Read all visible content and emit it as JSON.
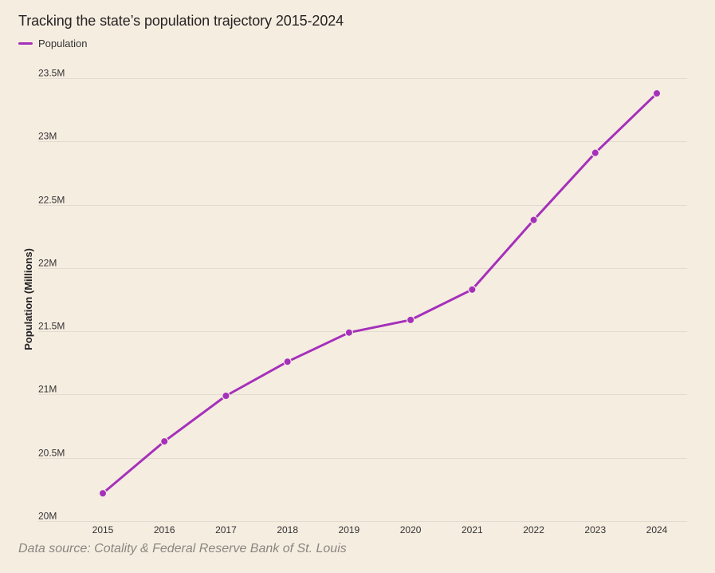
{
  "chart_data": {
    "type": "line",
    "title": "Tracking the state’s population trajectory 2015-2024",
    "ylabel": "Population (Millions)",
    "xlabel": "",
    "categories": [
      "2015",
      "2016",
      "2017",
      "2018",
      "2019",
      "2020",
      "2021",
      "2022",
      "2023",
      "2024"
    ],
    "series": [
      {
        "name": "Population",
        "color": "#a530ba",
        "values": [
          20.22,
          20.63,
          20.99,
          21.26,
          21.49,
          21.59,
          21.83,
          22.38,
          22.91,
          23.38
        ]
      }
    ],
    "ylim": [
      20,
      23.5
    ],
    "yticks": [
      20,
      20.5,
      21,
      21.5,
      22,
      22.5,
      23,
      23.5
    ],
    "ytick_labels": [
      "20M",
      "20.5M",
      "21M",
      "21.5M",
      "22M",
      "22.5M",
      "23M",
      "23.5M"
    ],
    "grid": true,
    "legend": "top-left"
  },
  "source_note": "Data source: Cotality & Federal Reserve Bank of St. Louis",
  "colors": {
    "background": "#f6ede1",
    "gridline": "#e4dbd0",
    "axis_text": "#333333",
    "source_text": "#8a8580"
  }
}
